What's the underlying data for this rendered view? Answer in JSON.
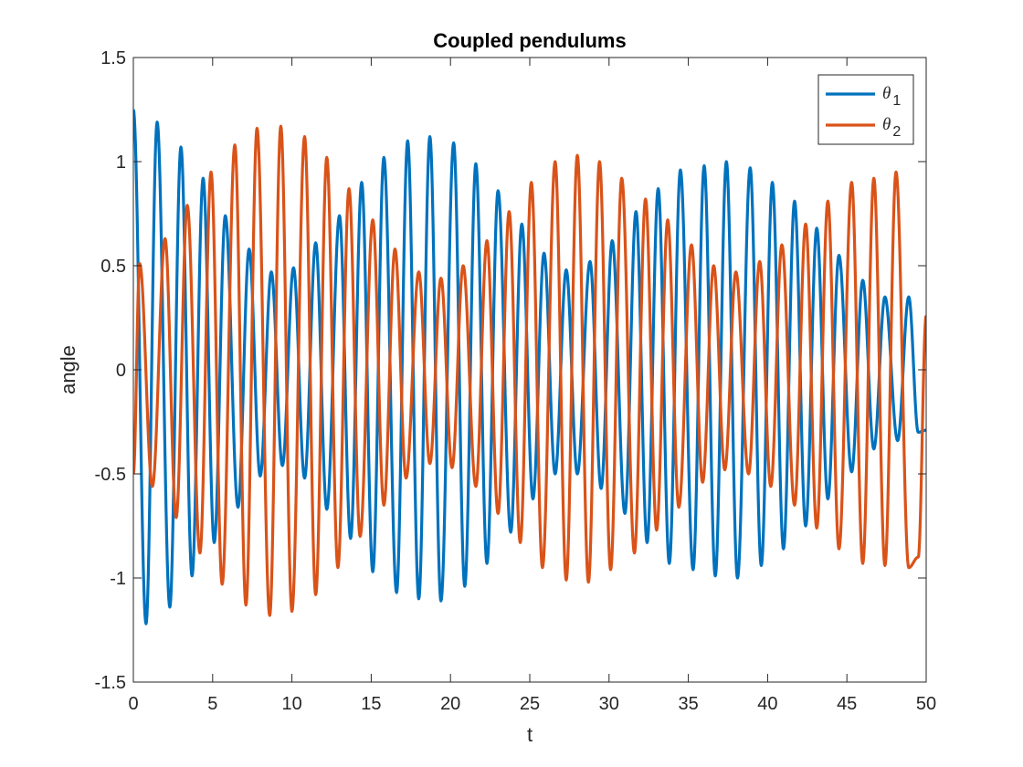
{
  "chart_data": {
    "type": "line",
    "title": "Coupled pendulums",
    "xlabel": "t",
    "ylabel": "angle",
    "xlim": [
      0,
      50
    ],
    "ylim": [
      -1.5,
      1.5
    ],
    "xticks": [
      0,
      5,
      10,
      15,
      20,
      25,
      30,
      35,
      40,
      45,
      50
    ],
    "yticks": [
      -1.5,
      -1,
      -0.5,
      0,
      0.5,
      1,
      1.5
    ],
    "xtick_labels": [
      "0",
      "5",
      "10",
      "15",
      "20",
      "25",
      "30",
      "35",
      "40",
      "45",
      "50"
    ],
    "ytick_labels": [
      "-1.5",
      "-1",
      "-0.5",
      "0",
      "0.5",
      "1",
      "1.5"
    ],
    "grid": false,
    "legend_position": "top-right",
    "series": [
      {
        "name_symbol": "θ",
        "name_subscript": "1",
        "color": "#0072BD",
        "peaks": [
          [
            0.0,
            1.25
          ],
          [
            0.8,
            -1.22
          ],
          [
            1.5,
            1.19
          ],
          [
            2.3,
            -1.14
          ],
          [
            3.0,
            1.07
          ],
          [
            3.7,
            -0.99
          ],
          [
            4.4,
            0.92
          ],
          [
            5.1,
            -0.83
          ],
          [
            5.8,
            0.74
          ],
          [
            6.6,
            -0.66
          ],
          [
            7.3,
            0.58
          ],
          [
            8.0,
            -0.51
          ],
          [
            8.7,
            0.47
          ],
          [
            9.4,
            -0.46
          ],
          [
            10.1,
            0.49
          ],
          [
            10.8,
            -0.52
          ],
          [
            11.5,
            0.61
          ],
          [
            12.2,
            -0.67
          ],
          [
            13.0,
            0.74
          ],
          [
            13.7,
            -0.81
          ],
          [
            14.4,
            0.9
          ],
          [
            15.1,
            -0.97
          ],
          [
            15.8,
            1.02
          ],
          [
            16.6,
            -1.07
          ],
          [
            17.3,
            1.1
          ],
          [
            18.0,
            -1.1
          ],
          [
            18.7,
            1.12
          ],
          [
            19.4,
            -1.11
          ],
          [
            20.2,
            1.09
          ],
          [
            20.9,
            -1.04
          ],
          [
            21.6,
            0.99
          ],
          [
            22.3,
            -0.93
          ],
          [
            23.0,
            0.86
          ],
          [
            23.8,
            -0.78
          ],
          [
            24.5,
            0.7
          ],
          [
            25.2,
            -0.62
          ],
          [
            25.9,
            0.56
          ],
          [
            26.6,
            -0.5
          ],
          [
            27.3,
            0.48
          ],
          [
            28.0,
            -0.5
          ],
          [
            28.8,
            0.52
          ],
          [
            29.5,
            -0.57
          ],
          [
            30.2,
            0.62
          ],
          [
            31.0,
            -0.69
          ],
          [
            31.7,
            0.76
          ],
          [
            32.4,
            -0.83
          ],
          [
            33.1,
            0.87
          ],
          [
            33.8,
            -0.93
          ],
          [
            34.5,
            0.96
          ],
          [
            35.3,
            -0.96
          ],
          [
            36.0,
            0.98
          ],
          [
            36.7,
            -0.99
          ],
          [
            37.4,
            1.0
          ],
          [
            38.1,
            -1.0
          ],
          [
            38.9,
            0.97
          ],
          [
            39.6,
            -0.94
          ],
          [
            40.3,
            0.9
          ],
          [
            41.0,
            -0.86
          ],
          [
            41.7,
            0.81
          ],
          [
            42.4,
            -0.75
          ],
          [
            43.1,
            0.68
          ],
          [
            43.8,
            -0.62
          ],
          [
            44.5,
            0.55
          ],
          [
            45.3,
            -0.49
          ],
          [
            46.0,
            0.43
          ],
          [
            46.7,
            -0.38
          ],
          [
            47.4,
            0.35
          ],
          [
            48.2,
            -0.34
          ],
          [
            48.9,
            0.35
          ],
          [
            49.5,
            -0.3
          ],
          [
            50.0,
            -0.29
          ]
        ]
      },
      {
        "name_symbol": "θ",
        "name_subscript": "2",
        "color": "#D95319",
        "peaks": [
          [
            0.0,
            -0.5
          ],
          [
            0.4,
            0.51
          ],
          [
            1.2,
            -0.56
          ],
          [
            2.0,
            0.63
          ],
          [
            2.7,
            -0.71
          ],
          [
            3.4,
            0.79
          ],
          [
            4.2,
            -0.88
          ],
          [
            4.9,
            0.95
          ],
          [
            5.6,
            -1.03
          ],
          [
            6.4,
            1.08
          ],
          [
            7.1,
            -1.13
          ],
          [
            7.8,
            1.16
          ],
          [
            8.6,
            -1.18
          ],
          [
            9.3,
            1.17
          ],
          [
            10.0,
            -1.16
          ],
          [
            10.8,
            1.12
          ],
          [
            11.5,
            -1.08
          ],
          [
            12.2,
            1.02
          ],
          [
            12.9,
            -0.95
          ],
          [
            13.6,
            0.87
          ],
          [
            14.3,
            -0.8
          ],
          [
            15.1,
            0.72
          ],
          [
            15.8,
            -0.65
          ],
          [
            16.5,
            0.58
          ],
          [
            17.2,
            -0.52
          ],
          [
            18.0,
            0.47
          ],
          [
            18.7,
            -0.45
          ],
          [
            19.4,
            0.44
          ],
          [
            20.1,
            -0.47
          ],
          [
            20.8,
            0.5
          ],
          [
            21.6,
            -0.56
          ],
          [
            22.3,
            0.62
          ],
          [
            23.0,
            -0.69
          ],
          [
            23.7,
            0.76
          ],
          [
            24.4,
            -0.83
          ],
          [
            25.1,
            0.9
          ],
          [
            25.8,
            -0.95
          ],
          [
            26.6,
            1.0
          ],
          [
            27.3,
            -1.01
          ],
          [
            28.0,
            1.03
          ],
          [
            28.7,
            -1.02
          ],
          [
            29.4,
            1.0
          ],
          [
            30.1,
            -0.96
          ],
          [
            30.8,
            0.92
          ],
          [
            31.6,
            -0.88
          ],
          [
            32.3,
            0.82
          ],
          [
            33.0,
            -0.77
          ],
          [
            33.7,
            0.72
          ],
          [
            34.4,
            -0.66
          ],
          [
            35.2,
            0.6
          ],
          [
            35.9,
            -0.54
          ],
          [
            36.6,
            0.5
          ],
          [
            37.3,
            -0.48
          ],
          [
            38.0,
            0.47
          ],
          [
            38.8,
            -0.5
          ],
          [
            39.5,
            0.52
          ],
          [
            40.2,
            -0.56
          ],
          [
            40.9,
            0.6
          ],
          [
            41.7,
            -0.65
          ],
          [
            42.4,
            0.7
          ],
          [
            43.1,
            -0.76
          ],
          [
            43.8,
            0.81
          ],
          [
            44.5,
            -0.86
          ],
          [
            45.3,
            0.9
          ],
          [
            46.0,
            -0.93
          ],
          [
            46.7,
            0.92
          ],
          [
            47.4,
            -0.94
          ],
          [
            48.1,
            0.95
          ],
          [
            48.9,
            -0.95
          ],
          [
            49.5,
            -0.9
          ],
          [
            50.0,
            0.26
          ]
        ]
      }
    ]
  }
}
